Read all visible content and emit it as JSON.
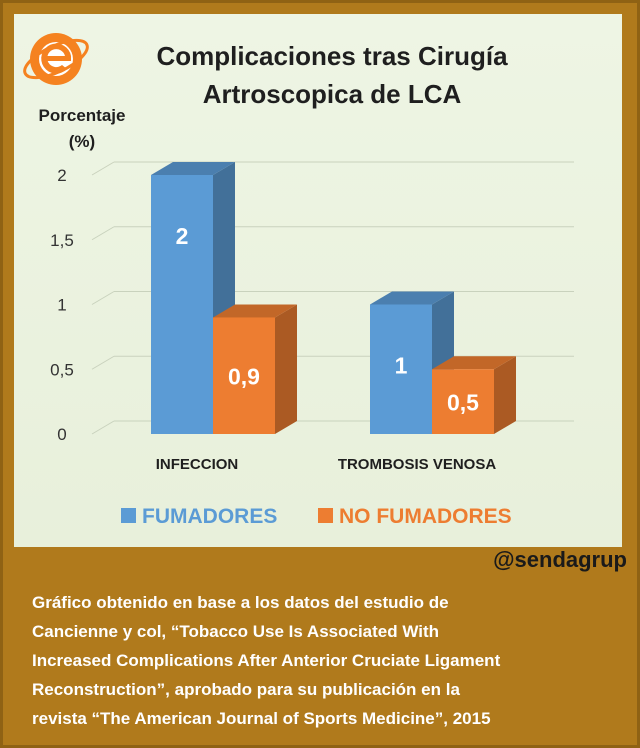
{
  "chart_data": {
    "type": "bar",
    "title": "Complicaciones tras Cirugía Artroscopica de LCA",
    "title_lines": [
      "Complicaciones tras Cirugía",
      "Artroscopica de LCA"
    ],
    "ylabel_lines": [
      "Porcentaje",
      "(%)"
    ],
    "categories": [
      "INFECCION",
      "TROMBOSIS VENOSA"
    ],
    "series": [
      {
        "name": "FUMADORES",
        "values": [
          2,
          1
        ],
        "labels": [
          "2",
          "1"
        ],
        "color": "#5b9bd5"
      },
      {
        "name": "NO FUMADORES",
        "values": [
          0.9,
          0.5
        ],
        "labels": [
          "0,9",
          "0,5"
        ],
        "color": "#ed7d31"
      }
    ],
    "yticks": [
      "0",
      "0,5",
      "1",
      "1,5",
      "2"
    ],
    "ylim": [
      0,
      2
    ],
    "legend": "bottom",
    "style": "3d-columns"
  },
  "logo": {
    "name": "senda-logo-icon",
    "color": "#f58220"
  },
  "handle": "@sendagrup",
  "caption": "Gráfico obtenido en base a los datos del estudio de\nCancienne y col, “Tobacco Use Is Associated With\nIncreased Complications After Anterior Cruciate Ligament\nReconstruction”, aprobado para su publicación en la\nrevista “The American Journal of Sports Medicine”, 2015",
  "colors": {
    "background": "#b07a1c",
    "panel": "#e8f0db"
  }
}
